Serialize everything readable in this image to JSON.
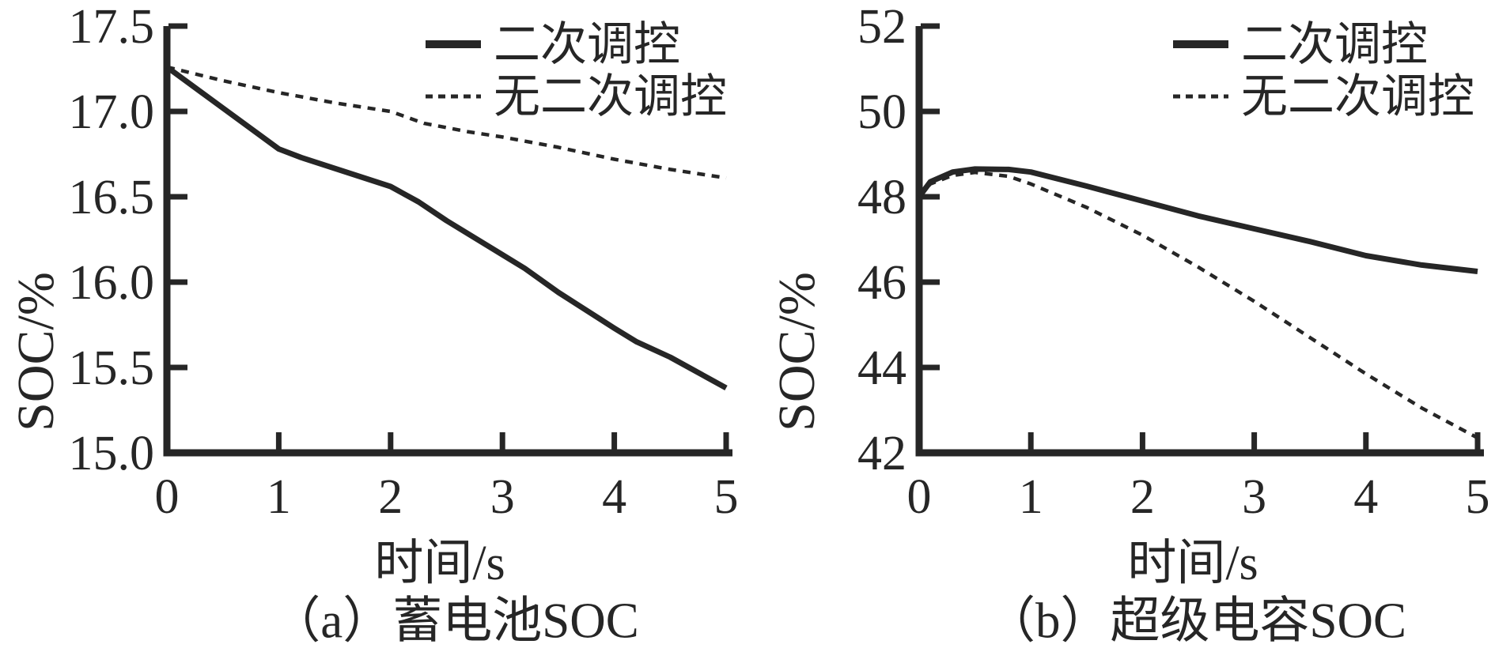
{
  "figure": {
    "background": "#ffffff",
    "line_color": "#262626"
  },
  "chart_data": [
    {
      "type": "line",
      "panel": "a",
      "caption": "（a）蓄电池SOC",
      "xlabel": "时间/s",
      "ylabel": "SOC/%",
      "xlim": [
        0,
        5
      ],
      "ylim": [
        15.0,
        17.5
      ],
      "xticks": [
        "0",
        "1",
        "2",
        "3",
        "4",
        "5"
      ],
      "yticks": [
        "15.0",
        "15.5",
        "16.0",
        "16.5",
        "17.0",
        "17.5"
      ],
      "grid": false,
      "legend_position": "top-right",
      "series": [
        {
          "name": "二次调控",
          "style": "solid",
          "x": [
            0,
            0.5,
            1,
            1.2,
            2,
            2.25,
            2.5,
            3,
            3.2,
            3.5,
            4,
            4.2,
            4.5,
            5
          ],
          "y": [
            17.26,
            17.02,
            16.78,
            16.73,
            16.56,
            16.47,
            16.36,
            16.16,
            16.08,
            15.94,
            15.73,
            15.65,
            15.56,
            15.38
          ]
        },
        {
          "name": "无二次调控",
          "style": "dashed",
          "x": [
            0,
            0.5,
            1,
            1.5,
            2,
            2.3,
            2.7,
            3,
            3.5,
            4,
            4.5,
            5
          ],
          "y": [
            17.26,
            17.18,
            17.11,
            17.05,
            17.0,
            16.93,
            16.88,
            16.85,
            16.79,
            16.72,
            16.66,
            16.61
          ]
        }
      ]
    },
    {
      "type": "line",
      "panel": "b",
      "caption": "（b）超级电容SOC",
      "xlabel": "时间/s",
      "ylabel": "SOC/%",
      "xlim": [
        0,
        5
      ],
      "ylim": [
        42,
        52
      ],
      "xticks": [
        "0",
        "1",
        "2",
        "3",
        "4",
        "5"
      ],
      "yticks": [
        "42",
        "44",
        "46",
        "48",
        "50",
        "52"
      ],
      "grid": false,
      "legend_position": "top-right",
      "series": [
        {
          "name": "二次调控",
          "style": "solid",
          "x": [
            0,
            0.1,
            0.3,
            0.5,
            0.8,
            1,
            1.5,
            2,
            2.5,
            3,
            3.5,
            4,
            4.5,
            5
          ],
          "y": [
            48.0,
            48.35,
            48.58,
            48.65,
            48.64,
            48.58,
            48.25,
            47.9,
            47.55,
            47.25,
            46.95,
            46.62,
            46.4,
            46.25
          ]
        },
        {
          "name": "无二次调控",
          "style": "dashed",
          "x": [
            0,
            0.1,
            0.3,
            0.5,
            0.8,
            1,
            1.5,
            2,
            2.5,
            3,
            3.5,
            4,
            4.5,
            5
          ],
          "y": [
            48.0,
            48.3,
            48.5,
            48.57,
            48.48,
            48.3,
            47.75,
            47.1,
            46.35,
            45.55,
            44.7,
            43.85,
            43.05,
            42.35
          ]
        }
      ]
    }
  ]
}
